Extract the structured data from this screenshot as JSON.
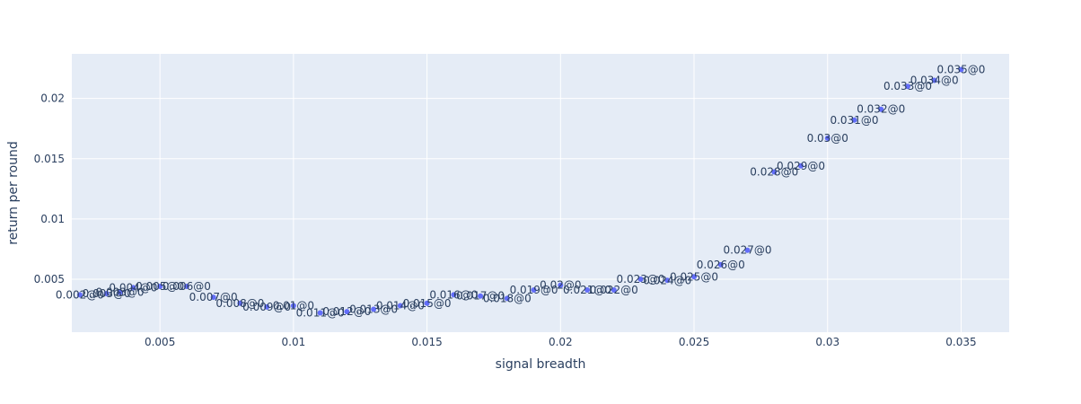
{
  "chart_data": {
    "type": "scatter",
    "xlabel": "signal breadth",
    "ylabel": "return per round",
    "xlim": [
      0.0017,
      0.0368
    ],
    "ylim": [
      0.0006,
      0.0237
    ],
    "grid": true,
    "xticks": [
      0.005,
      0.01,
      0.015,
      0.02,
      0.025,
      0.03,
      0.035
    ],
    "xtick_labels": [
      "0.005",
      "0.01",
      "0.015",
      "0.02",
      "0.025",
      "0.03",
      "0.035"
    ],
    "yticks": [
      0.005,
      0.01,
      0.015,
      0.02
    ],
    "ytick_labels": [
      "0.005",
      "0.01",
      "0.015",
      "0.02"
    ],
    "marker_color": "#636efa",
    "points": [
      {
        "x": 0.002,
        "y": 0.0037,
        "label": "0.002@0"
      },
      {
        "x": 0.003,
        "y": 0.0038,
        "label": "0.003@0"
      },
      {
        "x": 0.0035,
        "y": 0.0039,
        "label": "0.003@0"
      },
      {
        "x": 0.004,
        "y": 0.0043,
        "label": "0.004@0"
      },
      {
        "x": 0.005,
        "y": 0.0044,
        "label": "0.005@0"
      },
      {
        "x": 0.006,
        "y": 0.0044,
        "label": "0.006@0"
      },
      {
        "x": 0.007,
        "y": 0.0035,
        "label": "0.007@0"
      },
      {
        "x": 0.008,
        "y": 0.003,
        "label": "0.008@0"
      },
      {
        "x": 0.009,
        "y": 0.0027,
        "label": "0.009@0"
      },
      {
        "x": 0.01,
        "y": 0.0028,
        "label": "0.01@0"
      },
      {
        "x": 0.011,
        "y": 0.0022,
        "label": "0.011@0"
      },
      {
        "x": 0.012,
        "y": 0.0023,
        "label": "0.012@0"
      },
      {
        "x": 0.013,
        "y": 0.0025,
        "label": "0.013@0"
      },
      {
        "x": 0.014,
        "y": 0.0028,
        "label": "0.014@0"
      },
      {
        "x": 0.015,
        "y": 0.003,
        "label": "0.015@0"
      },
      {
        "x": 0.016,
        "y": 0.0037,
        "label": "0.016@0"
      },
      {
        "x": 0.017,
        "y": 0.0036,
        "label": "0.017@0"
      },
      {
        "x": 0.018,
        "y": 0.0034,
        "label": "0.018@0"
      },
      {
        "x": 0.019,
        "y": 0.0041,
        "label": "0.019@0"
      },
      {
        "x": 0.02,
        "y": 0.0045,
        "label": "0.02@0"
      },
      {
        "x": 0.021,
        "y": 0.0041,
        "label": "0.021@0"
      },
      {
        "x": 0.022,
        "y": 0.0041,
        "label": "0.022@0"
      },
      {
        "x": 0.023,
        "y": 0.005,
        "label": "0.023@0"
      },
      {
        "x": 0.024,
        "y": 0.0049,
        "label": "0.024@0"
      },
      {
        "x": 0.025,
        "y": 0.0052,
        "label": "0.025@0"
      },
      {
        "x": 0.026,
        "y": 0.0062,
        "label": "0.026@0"
      },
      {
        "x": 0.027,
        "y": 0.0074,
        "label": "0.027@0"
      },
      {
        "x": 0.028,
        "y": 0.0139,
        "label": "0.028@0"
      },
      {
        "x": 0.029,
        "y": 0.0144,
        "label": "0.029@0"
      },
      {
        "x": 0.03,
        "y": 0.0167,
        "label": "0.03@0"
      },
      {
        "x": 0.031,
        "y": 0.0182,
        "label": "0.031@0"
      },
      {
        "x": 0.032,
        "y": 0.0191,
        "label": "0.032@0"
      },
      {
        "x": 0.033,
        "y": 0.021,
        "label": "0.033@0"
      },
      {
        "x": 0.034,
        "y": 0.0215,
        "label": "0.034@0"
      },
      {
        "x": 0.035,
        "y": 0.0224,
        "label": "0.035@0"
      }
    ]
  }
}
